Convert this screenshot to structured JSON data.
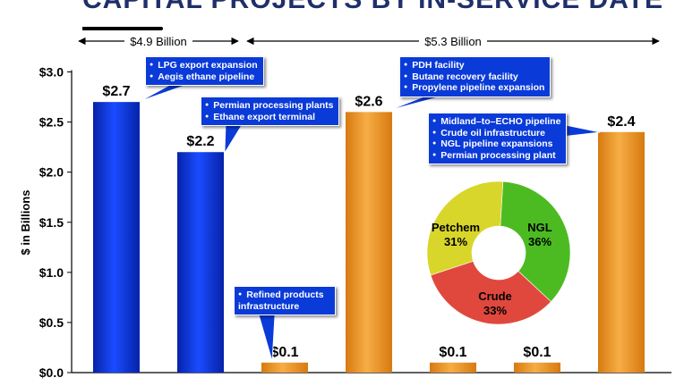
{
  "title": "CAPITAL PROJECTS BY IN-SERVICE DATE",
  "colors": {
    "blue": "#0b32d6",
    "orange": "#f09a28",
    "annotation": "#0a3ad8",
    "ngl": "#4cbb22",
    "crude": "#e0483e",
    "petchem": "#d8d62a"
  },
  "chart_data": {
    "type": "bar",
    "ylabel": "$ in Billions",
    "ylim": [
      0,
      3.0
    ],
    "yticks": [
      "$0.0",
      "$0.5",
      "$1.0",
      "$1.5",
      "$2.0",
      "$2.5",
      "$3.0"
    ],
    "values": [
      2.7,
      2.2,
      0.1,
      2.6,
      0.1,
      0.1,
      2.4
    ],
    "data_labels": [
      "$2.7",
      "$2.2",
      "$0.1",
      "$2.6",
      "$0.1",
      "$0.1",
      "$2.4"
    ],
    "bar_colors": [
      "blue",
      "blue",
      "orange",
      "orange",
      "orange",
      "orange",
      "orange"
    ],
    "brackets": [
      {
        "label": "$4.9 Billion",
        "from_bar": 0,
        "to_bar": 1
      },
      {
        "label": "$5.3 Billion",
        "from_bar": 2,
        "to_bar": 6
      }
    ],
    "annotations": [
      {
        "bar": 0,
        "items": [
          "LPG export expansion",
          "Aegis ethane pipeline"
        ]
      },
      {
        "bar": 1,
        "items": [
          "Permian processing plants",
          "Ethane export terminal"
        ]
      },
      {
        "bar": 2,
        "items": [
          "Refined products infrastructure"
        ]
      },
      {
        "bar": 3,
        "items": [
          "PDH facility",
          "Butane recovery facility",
          "Propylene pipeline expansion"
        ]
      },
      {
        "bar": 6,
        "items": [
          "Midland–to–ECHO pipeline",
          "Crude oil  infrastructure",
          "NGL pipeline expansions",
          "Permian processing plant"
        ]
      }
    ],
    "inset_pie": {
      "type": "pie",
      "slices": [
        {
          "label": "NGL",
          "value": 36,
          "display": "36%",
          "color": "ngl"
        },
        {
          "label": "Crude",
          "value": 33,
          "display": "33%",
          "color": "crude"
        },
        {
          "label": "Petchem",
          "value": 31,
          "display": "31%",
          "color": "petchem"
        }
      ]
    }
  }
}
